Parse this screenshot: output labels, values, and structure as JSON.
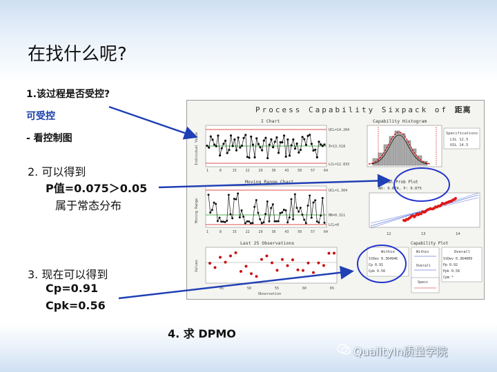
{
  "title": "在找什么呢?",
  "items": {
    "q1": "1.该过程是否受控?",
    "a1": "可受控",
    "a1_sub": "- 看控制图",
    "q2_line1": "2.   可以得到",
    "q2_line2": "P值=0.075＞0.05",
    "q2_line3": "属于常态分布",
    "q3_line1": "3.  现在可以得到",
    "q3_line2": "Cp=0.91",
    "q3_line3": "Cpk=0.56",
    "q4": "4.  求 DPMO"
  },
  "sixpack": {
    "title_prefix": "Process Capability Sixpack of",
    "title_var": "距离",
    "ichart_title": "I Chart",
    "hist_title": "Capability Histogram",
    "mr_title": "Moving Range Chart",
    "prob_title": "Normal Prob Plot",
    "prob_stats": "AD: 0.674, P: 0.075",
    "last25_title": "Last 25 Observations",
    "cap_plot_title": "Capability Plot",
    "spec_box": [
      "Specifications",
      "LSL 12.5",
      "USL 14.5"
    ],
    "ucl_i": "UCL=14.204",
    "xbar": "X̄=13.518",
    "lcl_i": "LCL=12.833",
    "ucl_mr": "UCL=1.304",
    "mrbar": "MR=0.311",
    "lcl_mr": "LCL=0",
    "ylabel_i": "Individual Value",
    "ylabel_mr": "Moving Range",
    "ylabel_last": "Values",
    "xlabel_last": "Observation",
    "i_xticks": [
      "1",
      "8",
      "15",
      "22",
      "29",
      "36",
      "43",
      "50",
      "57",
      "64"
    ],
    "last_xticks": [
      "45",
      "50",
      "55",
      "60",
      "65"
    ],
    "prob_xticks": [
      "12",
      "13",
      "14"
    ],
    "within": {
      "label": "Within",
      "rows": [
        "StDev 0.364946",
        "Cp   0.91",
        "Cpk  0.56"
      ]
    },
    "overall": {
      "label": "Overall",
      "rows": [
        "StDev 0.364009",
        "Pp   0.92",
        "Ppk  0.56",
        "Cpm  *"
      ]
    },
    "specs_label": "Specs"
  },
  "brand": "QualityIn质量学院",
  "colors": {
    "arrow": "#1f3fb5",
    "ellipse": "#2233cc",
    "histline": "#d01010"
  }
}
